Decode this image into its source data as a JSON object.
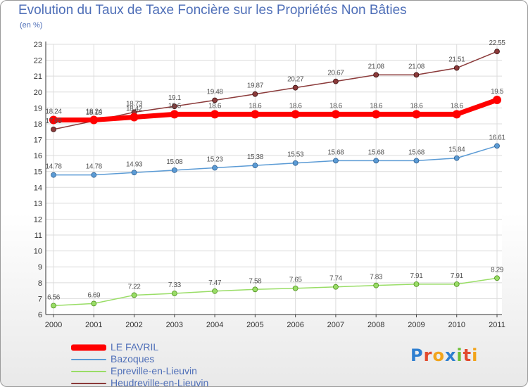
{
  "title": "Evolution du Taux de Taxe Foncière sur les Propriétés Non Bâties",
  "subtitle": "(en %)",
  "logo": {
    "letters": [
      {
        "ch": "P",
        "color": "#2f7fd0"
      },
      {
        "ch": "r",
        "color": "#e24a2d"
      },
      {
        "ch": "o",
        "color": "#f2a41b"
      },
      {
        "ch": "x",
        "color": "#2f7fd0"
      },
      {
        "ch": "i",
        "color": "#6cbf35"
      },
      {
        "ch": "t",
        "color": "#e24a2d"
      },
      {
        "ch": "i",
        "color": "#f2a41b"
      }
    ]
  },
  "chart_data": {
    "type": "line",
    "title": "Evolution du Taux de Taxe Foncière sur les Propriétés Non Bâties",
    "ylabel": "(en %)",
    "xlabel": "",
    "x": [
      "2000",
      "2001",
      "2002",
      "2003",
      "2004",
      "2005",
      "2006",
      "2007",
      "2008",
      "2009",
      "2010",
      "2011"
    ],
    "ylim": [
      6,
      23
    ],
    "yticks": [
      6,
      7,
      8,
      9,
      10,
      11,
      12,
      13,
      14,
      15,
      16,
      17,
      18,
      19,
      20,
      21,
      22,
      23
    ],
    "grid": true,
    "legend_position": "bottom-left",
    "series": [
      {
        "name": "LE FAVRIL",
        "color": "#ff0000",
        "values": [
          18.24,
          18.24,
          18.42,
          18.6,
          18.6,
          18.6,
          18.6,
          18.6,
          18.6,
          18.6,
          18.6,
          19.5
        ],
        "labels": [
          "18.24",
          "18.24",
          "18.42",
          "18.6",
          "18.6",
          "18.6",
          "18.6",
          "18.6",
          "18.6",
          "18.6",
          "18.6",
          "19.5"
        ]
      },
      {
        "name": "Bazoques",
        "color": "#5b9bd5",
        "values": [
          14.78,
          14.78,
          14.93,
          15.08,
          15.23,
          15.38,
          15.53,
          15.68,
          15.68,
          15.68,
          15.84,
          16.61
        ],
        "labels": [
          "14.78",
          "14.78",
          "14.93",
          "15.08",
          "15.23",
          "15.38",
          "15.53",
          "15.68",
          "15.68",
          "15.68",
          "15.84",
          "16.61"
        ]
      },
      {
        "name": "Epreville-en-Lieuvin",
        "color": "#99dd66",
        "values": [
          6.56,
          6.69,
          7.22,
          7.33,
          7.47,
          7.58,
          7.65,
          7.74,
          7.83,
          7.91,
          7.91,
          8.29
        ],
        "labels": [
          "6.56",
          "6.69",
          "7.22",
          "7.33",
          "7.47",
          "7.58",
          "7.65",
          "7.74",
          "7.83",
          "7.91",
          "7.91",
          "8.29"
        ]
      },
      {
        "name": "Heudreville-en-Lieuvin",
        "color": "#8b3a3a",
        "values": [
          17.65,
          18.18,
          18.73,
          19.1,
          19.48,
          19.87,
          20.27,
          20.67,
          21.08,
          21.08,
          21.51,
          22.55
        ],
        "labels": [
          "17.65",
          "18.18",
          "18.73",
          "19.1",
          "19.48",
          "19.87",
          "20.27",
          "20.67",
          "21.08",
          "21.08",
          "21.51",
          "22.55"
        ]
      }
    ]
  }
}
